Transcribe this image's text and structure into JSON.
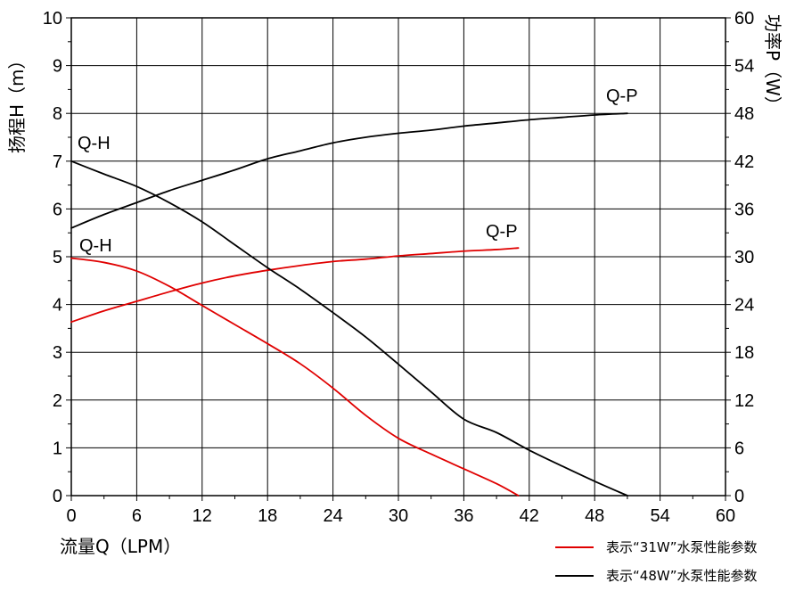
{
  "chart_data": {
    "type": "line",
    "x_axis": {
      "label": "流量Q（LPM）",
      "ticks": [
        0,
        6,
        12,
        18,
        24,
        30,
        36,
        42,
        48,
        54,
        60
      ],
      "range": [
        0,
        60
      ]
    },
    "y_axis_left": {
      "label": "扬程H（m）",
      "ticks": [
        0,
        1,
        2,
        3,
        4,
        5,
        6,
        7,
        8,
        9,
        10
      ],
      "range": [
        0,
        10
      ]
    },
    "y_axis_right": {
      "label": "功率P（W）",
      "ticks": [
        0,
        6,
        12,
        18,
        24,
        30,
        36,
        42,
        48,
        54,
        60
      ],
      "range": [
        0,
        60
      ]
    },
    "grid": true,
    "legend_position": "bottom-right",
    "legend": [
      {
        "label": "表示“31W”水泵性能参数",
        "color": "#e00000"
      },
      {
        "label": "表示“48W”水泵性能参数",
        "color": "#000000"
      }
    ],
    "series": [
      {
        "name": "Q-H",
        "pump": "31W",
        "axis": "left",
        "color": "#e00000",
        "label": "Q-H",
        "x": [
          0,
          3,
          6,
          9,
          12,
          15,
          18,
          21,
          24,
          27,
          30,
          33,
          36,
          39,
          41
        ],
        "y": [
          4.97,
          4.88,
          4.7,
          4.38,
          3.98,
          3.58,
          3.18,
          2.76,
          2.25,
          1.68,
          1.2,
          0.87,
          0.56,
          0.25,
          0.0
        ]
      },
      {
        "name": "Q-P",
        "pump": "31W",
        "axis": "right",
        "color": "#e00000",
        "label": "Q-P",
        "x": [
          0,
          3,
          6,
          9,
          12,
          15,
          18,
          21,
          24,
          27,
          30,
          33,
          36,
          39,
          41
        ],
        "y": [
          21.8,
          23.2,
          24.4,
          25.6,
          26.7,
          27.6,
          28.3,
          28.9,
          29.4,
          29.7,
          30.1,
          30.4,
          30.7,
          30.9,
          31.1
        ]
      },
      {
        "name": "Q-H",
        "pump": "48W",
        "axis": "left",
        "color": "#000000",
        "label": "Q-H",
        "x": [
          0,
          3,
          6,
          9,
          12,
          15,
          18,
          21,
          24,
          27,
          30,
          33,
          36,
          39,
          42,
          45,
          48,
          51
        ],
        "y": [
          7.0,
          6.73,
          6.47,
          6.13,
          5.73,
          5.25,
          4.77,
          4.32,
          3.83,
          3.32,
          2.75,
          2.17,
          1.6,
          1.32,
          0.95,
          0.62,
          0.3,
          0.0
        ]
      },
      {
        "name": "Q-P",
        "pump": "48W",
        "axis": "right",
        "color": "#000000",
        "label": "Q-P",
        "x": [
          0,
          3,
          6,
          9,
          12,
          15,
          18,
          21,
          24,
          27,
          30,
          33,
          36,
          39,
          42,
          45,
          48,
          51
        ],
        "y": [
          33.6,
          35.3,
          36.8,
          38.3,
          39.6,
          40.9,
          42.3,
          43.3,
          44.3,
          45.0,
          45.5,
          45.9,
          46.4,
          46.8,
          47.2,
          47.5,
          47.8,
          48.0
        ]
      }
    ]
  }
}
